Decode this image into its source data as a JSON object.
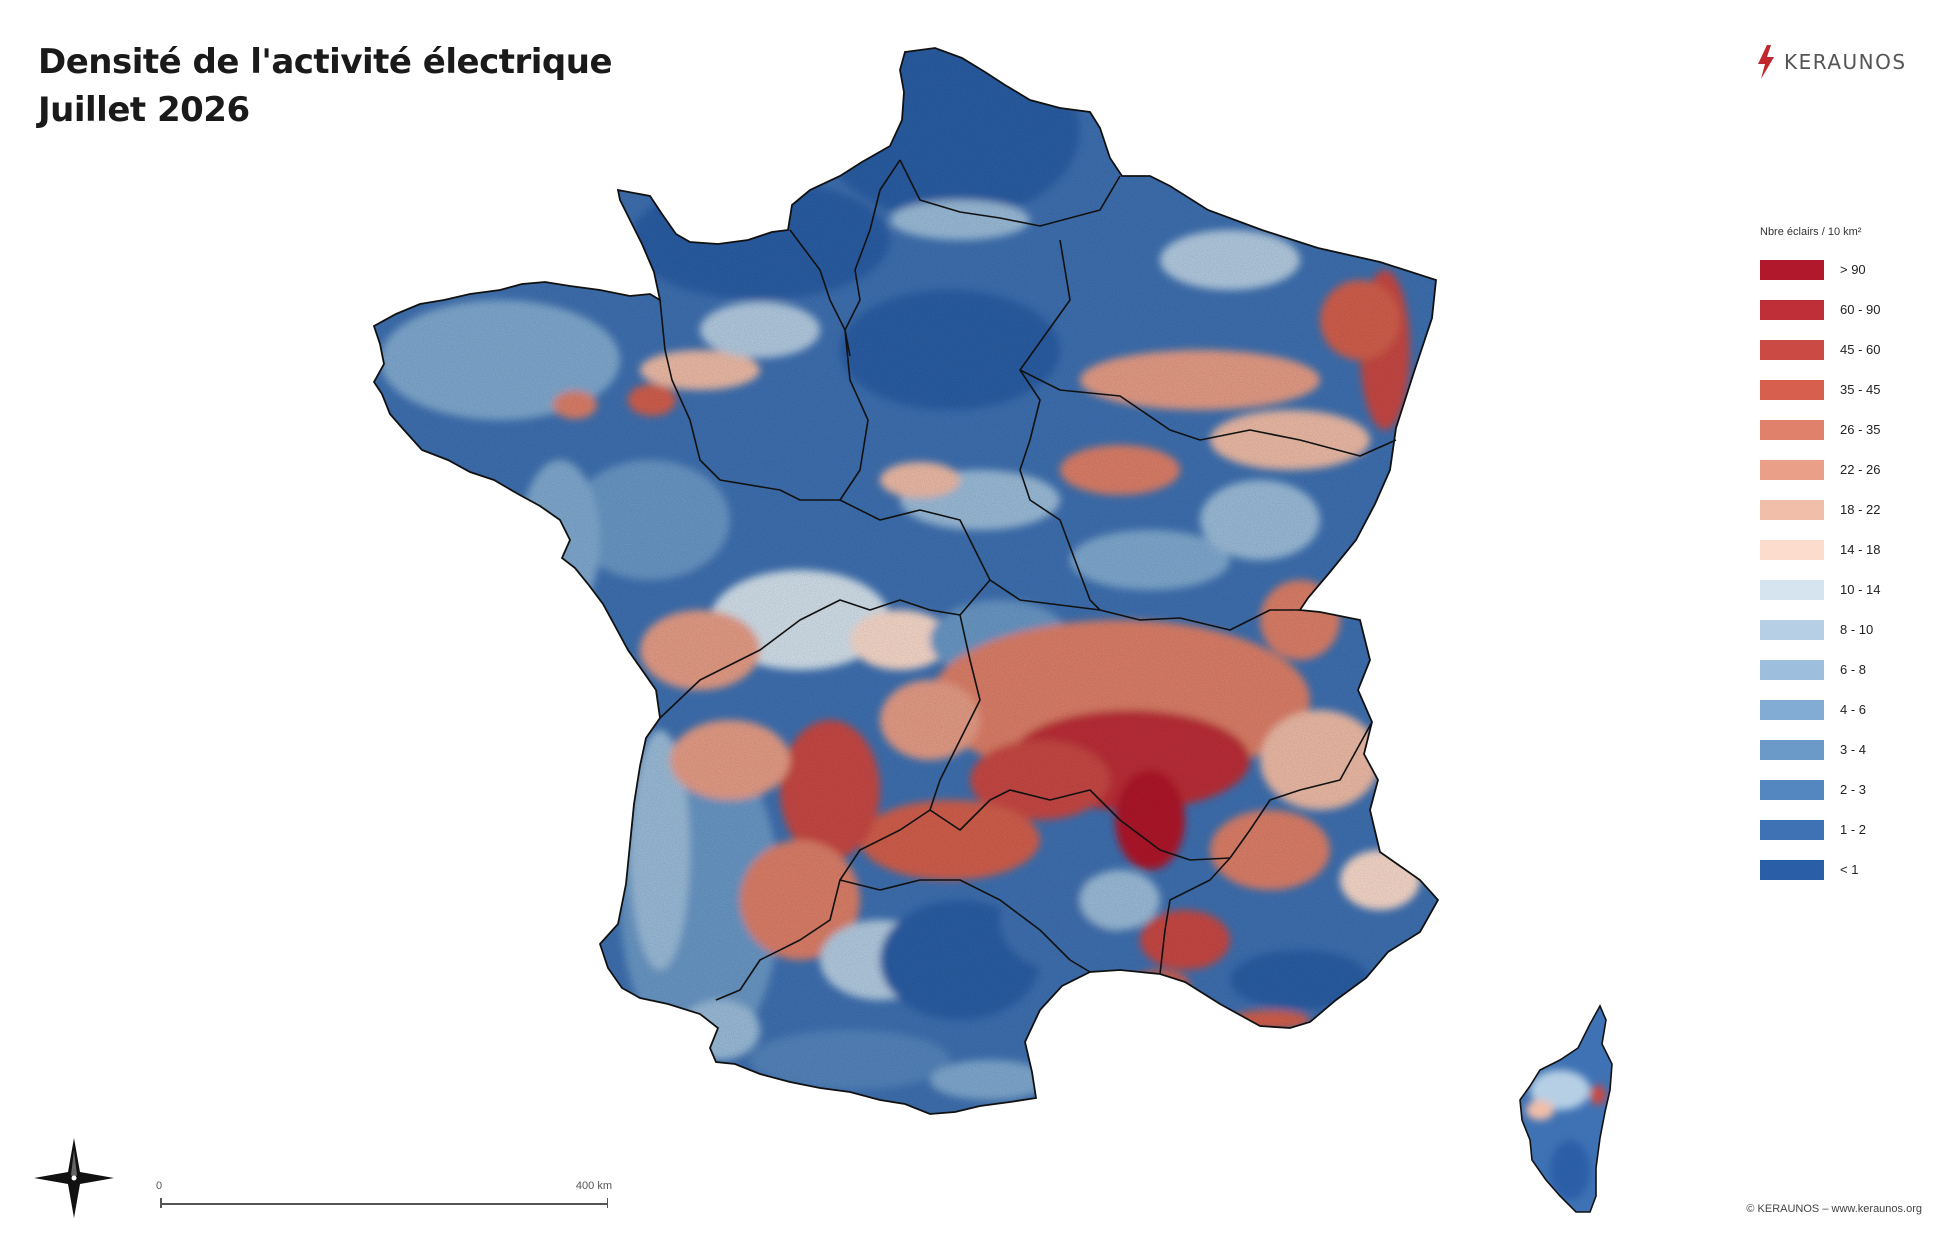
{
  "title": {
    "line1": "Densité de l'activité électrique",
    "line2": "Juillet 2026"
  },
  "brand": {
    "name": "KERAUNOS",
    "color": "#c0272d"
  },
  "legend": {
    "title": "Nbre éclairs / 10 km²",
    "classes": [
      {
        "label": "> 90",
        "color": "#b2182b"
      },
      {
        "label": "60 - 90",
        "color": "#bf2f37"
      },
      {
        "label": "45 - 60",
        "color": "#cb4a44"
      },
      {
        "label": "35 - 45",
        "color": "#d6604d"
      },
      {
        "label": "26 - 35",
        "color": "#e0816b"
      },
      {
        "label": "22 - 26",
        "color": "#e99f88"
      },
      {
        "label": "18 - 22",
        "color": "#f1bea9"
      },
      {
        "label": "14 - 18",
        "color": "#fbdccd"
      },
      {
        "label": "10 - 14",
        "color": "#d6e4ef"
      },
      {
        "label": "8 - 10",
        "color": "#b6cfe5"
      },
      {
        "label": "6 - 8",
        "color": "#9dbfdd"
      },
      {
        "label": "4 - 6",
        "color": "#82acd3"
      },
      {
        "label": "3 - 4",
        "color": "#6b9ac9"
      },
      {
        "label": "2 - 3",
        "color": "#5486c0"
      },
      {
        "label": "1 - 2",
        "color": "#3f72b4"
      },
      {
        "label": "< 1",
        "color": "#2a5ea7"
      }
    ]
  },
  "scale_bar": {
    "start_label": "0",
    "end_label": "400 km"
  },
  "compass": {
    "icon": "compass-rose-icon"
  },
  "copyright": "© KERAUNOS – www.keraunos.org"
}
